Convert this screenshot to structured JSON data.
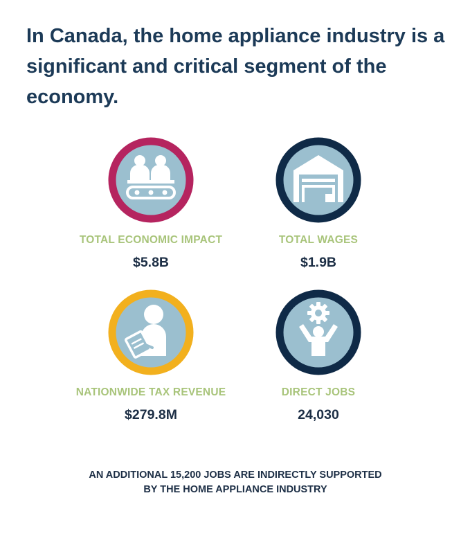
{
  "headline": "In Canada, the home appliance industry is a significant and critical segment of the economy.",
  "stats": [
    {
      "label": "TOTAL ECONOMIC IMPACT",
      "value": "$5.8B",
      "icon": "workers-conveyor-icon",
      "ring_color": "#b5245f"
    },
    {
      "label": "TOTAL WAGES",
      "value": "$1.9B",
      "icon": "warehouse-icon",
      "ring_color": "#0f2a47"
    },
    {
      "label": "NATIONWIDE TAX REVENUE",
      "value": "$279.8M",
      "icon": "person-clipboard-icon",
      "ring_color": "#f2b01e"
    },
    {
      "label": "DIRECT JOBS",
      "value": "24,030",
      "icon": "worker-gear-icon",
      "ring_color": "#0f2a47"
    }
  ],
  "footer": {
    "line1": "AN ADDITIONAL 15,200 JOBS ARE INDIRECTLY SUPPORTED",
    "line2": "BY THE HOME APPLIANCE INDUSTRY"
  },
  "colors": {
    "icon_fill": "#9bbfcf",
    "label": "#a8c47a",
    "value": "#1c2e45",
    "headline": "#1c3a57"
  }
}
